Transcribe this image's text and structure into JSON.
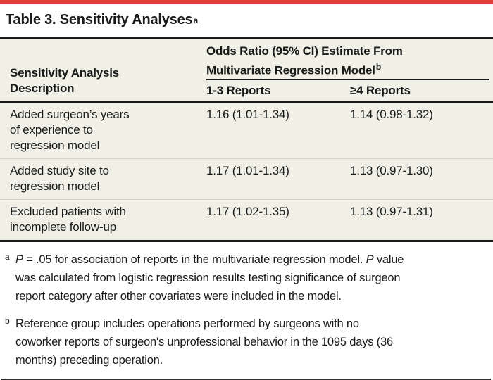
{
  "colors": {
    "accent": "#e23f3b",
    "table_bg": "#f1f0e6",
    "rule_dark": "#1a1a1a",
    "row_divider": "#d9d6c8",
    "text": "#1a1a1a"
  },
  "title": {
    "text": "Table 3. Sensitivity Analyses",
    "marker": "a"
  },
  "table": {
    "col1_header": "Sensitivity Analysis\nDescription",
    "span_header": {
      "text": "Odds Ratio (95% CI) Estimate From\nMultivariate Regression Model",
      "marker": "b"
    },
    "sub_headers": [
      "1-3 Reports",
      "≥4 Reports"
    ],
    "rows": [
      {
        "desc": "Added surgeon’s years\nof experience to\nregression model",
        "reports_1_3": "1.16 (1.01-1.34)",
        "reports_4plus": "1.14 (0.98-1.32)"
      },
      {
        "desc": "Added study site to\nregression model",
        "reports_1_3": "1.17 (1.01-1.34)",
        "reports_4plus": "1.13 (0.97-1.30)"
      },
      {
        "desc": "Excluded patients with\nincomplete follow-up",
        "reports_1_3": "1.17 (1.02-1.35)",
        "reports_4plus": "1.13 (0.97-1.31)"
      }
    ]
  },
  "footnotes": [
    {
      "marker": "a",
      "parts": [
        {
          "t": "P",
          "i": true
        },
        {
          "t": " = .05 for association of reports in the multivariate regression model. ",
          "i": false
        },
        {
          "t": "P",
          "i": true
        },
        {
          "t": " value\nwas calculated from logistic regression results testing significance of surgeon\nreport category after other covariates were included in the model.",
          "i": false
        }
      ]
    },
    {
      "marker": "b",
      "parts": [
        {
          "t": "Reference group includes operations performed by surgeons with no\ncoworker reports of surgeon's unprofessional behavior in the 1095 days (36\nmonths) preceding operation.",
          "i": false
        }
      ]
    }
  ]
}
